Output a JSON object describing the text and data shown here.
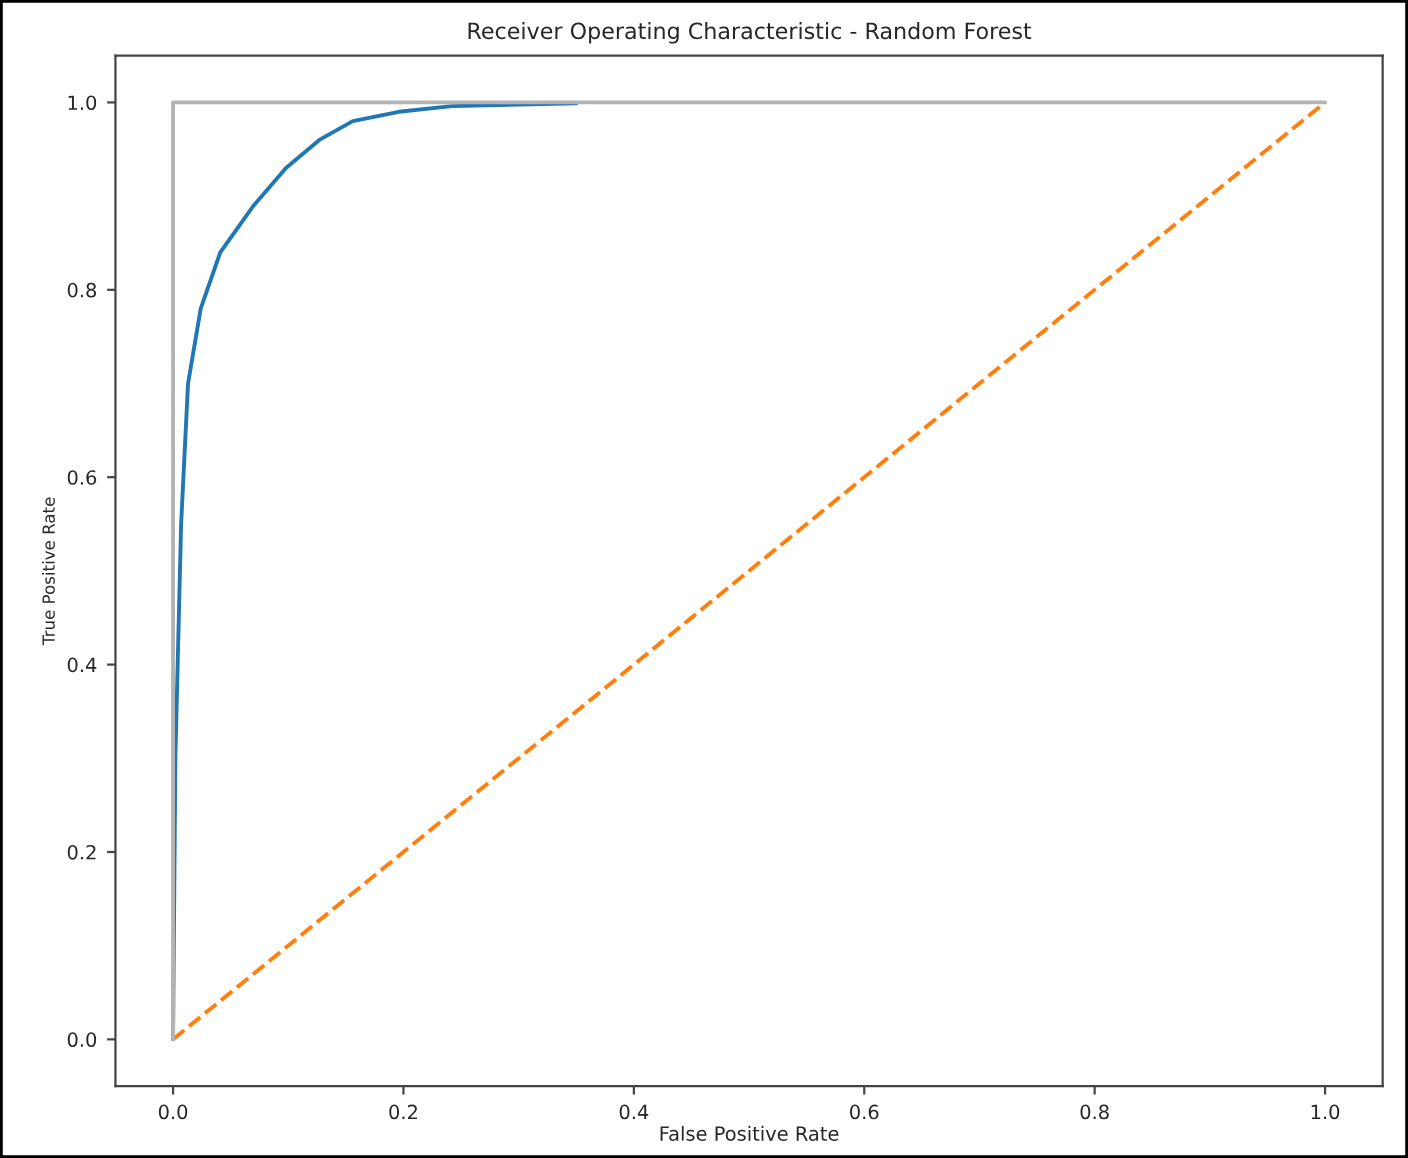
{
  "chart_data": {
    "type": "line",
    "title": "Receiver Operating Characteristic - Random Forest",
    "xlabel": "False Positive Rate",
    "ylabel": "True Positive Rate",
    "series": [
      {
        "color": "#1f77b4",
        "x": [
          0,
          0.002,
          0.005,
          0.007,
          0.013,
          0.024,
          0.041,
          0.07,
          0.098,
          0.127,
          0.156,
          0.196,
          0.242,
          0.35
        ],
        "values": [
          0,
          0.3,
          0.45,
          0.55,
          0.7,
          0.78,
          0.84,
          0.89,
          0.93,
          0.96,
          0.98,
          0.99,
          0.996,
          0.999
        ]
      },
      {
        "color": "#ff7f0e",
        "line_style": "dashed",
        "x": [
          0,
          1
        ],
        "values": [
          0,
          1
        ]
      },
      {
        "color": "#b3b3b3",
        "x": [
          0,
          0,
          1
        ],
        "values": [
          0,
          1,
          1
        ]
      }
    ],
    "xlim": [
      -0.05,
      1.05
    ],
    "ylim": [
      -0.05,
      1.05
    ],
    "xticks": [
      {
        "value": 0,
        "label": "0.0"
      },
      0.2,
      0.4,
      0.6,
      0.8,
      {
        "value": 1,
        "label": "1.0"
      }
    ],
    "yticks": [
      {
        "value": 0,
        "label": "0.0"
      },
      0.2,
      0.4,
      0.6,
      0.8,
      {
        "value": 1,
        "label": "1.0"
      }
    ],
    "grid": false,
    "legend": false
  }
}
